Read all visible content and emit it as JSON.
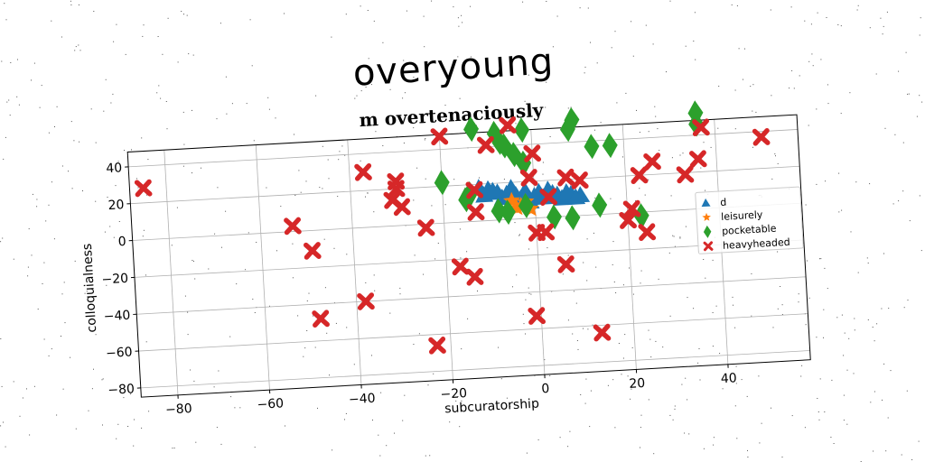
{
  "figure": {
    "title": "overyoung",
    "colors": {
      "background": "#ffffff",
      "grid": "#b0b0b0",
      "axes": "#000000"
    }
  },
  "chart_data": {
    "type": "scatter",
    "title": "m overtenaciously",
    "xlabel": "subcuratorship",
    "ylabel": "colloquialness",
    "xlim": [
      -88,
      58
    ],
    "ylim": [
      -85,
      48
    ],
    "xticks": [
      -80,
      -60,
      -40,
      -20,
      0,
      20,
      40
    ],
    "yticks": [
      -80,
      -60,
      -40,
      -20,
      0,
      20,
      40
    ],
    "xtick_labels": [
      "−80",
      "−60",
      "−40",
      "−20",
      "0",
      "20",
      "40"
    ],
    "ytick_labels": [
      "−80",
      "−60",
      "−40",
      "−20",
      "0",
      "20",
      "40"
    ],
    "grid": true,
    "legend_position": "right",
    "series": [
      {
        "name": "d",
        "marker": "triangle",
        "color": "#1f77b4",
        "points": [
          [
            -12,
            18
          ],
          [
            -10,
            17
          ],
          [
            -8,
            15
          ],
          [
            -6,
            14
          ],
          [
            -4,
            13
          ],
          [
            -2,
            15
          ],
          [
            0,
            12
          ],
          [
            2,
            11
          ],
          [
            4,
            13
          ],
          [
            6,
            10
          ],
          [
            8,
            12
          ],
          [
            10,
            11
          ],
          [
            -11,
            14
          ],
          [
            -7,
            12
          ],
          [
            -3,
            11
          ],
          [
            1,
            14
          ],
          [
            5,
            12
          ],
          [
            -9,
            16
          ],
          [
            3,
            15
          ],
          [
            7,
            13
          ],
          [
            -5,
            17
          ],
          [
            9,
            10
          ],
          [
            -1,
            9
          ]
        ]
      },
      {
        "name": "leisurely",
        "marker": "star",
        "color": "#ff7f0e",
        "points": [
          [
            -5,
            10
          ],
          [
            -3,
            7
          ],
          [
            -1,
            5
          ],
          [
            -4,
            6
          ],
          [
            -2,
            9
          ]
        ]
      },
      {
        "name": "pocketable",
        "marker": "diamond",
        "color": "#2ca02c",
        "points": [
          [
            -13,
            50
          ],
          [
            -8,
            47
          ],
          [
            -7,
            42
          ],
          [
            -6,
            40
          ],
          [
            -2,
            48
          ],
          [
            8,
            47
          ],
          [
            9,
            52
          ],
          [
            36,
            52
          ],
          [
            36,
            46
          ],
          [
            -20,
            22
          ],
          [
            -15,
            12
          ],
          [
            -14,
            15
          ],
          [
            -8,
            5
          ],
          [
            -6,
            4
          ],
          [
            -2,
            7
          ],
          [
            -4,
            35
          ],
          [
            -2,
            30
          ],
          [
            4,
            0
          ],
          [
            8,
            -1
          ],
          [
            13,
            37
          ],
          [
            17,
            37
          ],
          [
            14,
            5
          ],
          [
            23,
            -2
          ]
        ]
      },
      {
        "name": "heavyheaded",
        "marker": "x",
        "color": "#d62728",
        "points": [
          [
            -85,
            28
          ],
          [
            -53,
            3
          ],
          [
            -49,
            -11
          ],
          [
            -48,
            -48
          ],
          [
            -37,
            30
          ],
          [
            -38,
            -40
          ],
          [
            -31,
            14
          ],
          [
            -30,
            20
          ],
          [
            -30,
            24
          ],
          [
            -29,
            10
          ],
          [
            -24,
            -2
          ],
          [
            -23,
            -66
          ],
          [
            -20,
            47
          ],
          [
            -17,
            -24
          ],
          [
            -14,
            -30
          ],
          [
            -13,
            17
          ],
          [
            -13,
            5
          ],
          [
            -10,
            41
          ],
          [
            -5,
            51
          ],
          [
            -1,
            22
          ],
          [
            0,
            35
          ],
          [
            -1,
            -53
          ],
          [
            0,
            -8
          ],
          [
            2,
            -8
          ],
          [
            3,
            11
          ],
          [
            6,
            -26
          ],
          [
            7,
            21
          ],
          [
            10,
            19
          ],
          [
            13,
            -64
          ],
          [
            20,
            -4
          ],
          [
            21,
            2
          ],
          [
            23,
            20
          ],
          [
            24,
            -11
          ],
          [
            26,
            27
          ],
          [
            33,
            19
          ],
          [
            36,
            27
          ],
          [
            37,
            44
          ],
          [
            50,
            37
          ]
        ]
      }
    ]
  }
}
